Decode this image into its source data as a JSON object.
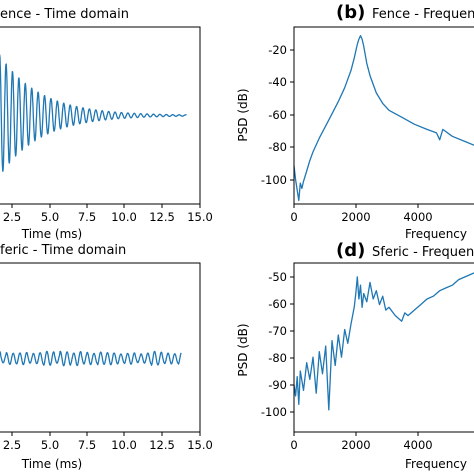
{
  "chart_data": [
    {
      "id": "a",
      "type": "line",
      "title": "ence - Time domain",
      "xlabel": "Time (ms)",
      "ylabel": "",
      "xlim": [
        -0.6,
        15.0
      ],
      "ylim": [
        -1.15,
        1.15
      ],
      "xticks": [
        "2.5",
        "5.0",
        "7.5",
        "10.0",
        "12.5",
        "15.0"
      ],
      "xtick_partial": "2.5",
      "yticks": [],
      "series": [
        {
          "kind": "damped-oscillation",
          "x_start": -0.6,
          "x_end": 14.0,
          "frequency_khz": 2.1,
          "amplitude": 1.0,
          "decay_ms": 3.0,
          "mean": 0.0
        }
      ]
    },
    {
      "id": "b",
      "panel_letter": "(b)",
      "type": "line",
      "title": "Fence - Frequen",
      "xlabel": "Frequency",
      "ylabel": "PSD (dB)",
      "xlim": [
        0,
        6000
      ],
      "ylim": [
        -107,
        -5
      ],
      "xticks": [
        0,
        2000,
        4000
      ],
      "yticks": [
        -20,
        -40,
        -60,
        -80,
        -100
      ],
      "series": [
        {
          "x": [
            0,
            50,
            100,
            150,
            200,
            250,
            300,
            400,
            500,
            600,
            800,
            1000,
            1200,
            1400,
            1600,
            1800,
            1900,
            2000,
            2050,
            2100,
            2150,
            2200,
            2300,
            2400,
            2600,
            2800,
            3000,
            3400,
            3800,
            4200,
            4500,
            4600,
            4700,
            5000,
            5400,
            5800,
            6000
          ],
          "y": [
            -85,
            -93,
            -99,
            -105,
            -95,
            -98,
            -94,
            -88,
            -82,
            -77,
            -69,
            -62,
            -55,
            -48,
            -40,
            -30,
            -23,
            -15,
            -12,
            -10,
            -12,
            -16,
            -26,
            -33,
            -43,
            -49,
            -53,
            -57,
            -61,
            -64,
            -66,
            -70,
            -64,
            -68,
            -71,
            -74,
            -73
          ]
        }
      ]
    },
    {
      "id": "c",
      "type": "line",
      "title": "feric - Time domain",
      "xlabel": "Time (ms)",
      "ylabel": "",
      "xlim": [
        -0.6,
        15.0
      ],
      "ylim": [
        -1.15,
        1.15
      ],
      "xticks": [
        "2.5",
        "5.0",
        "7.5",
        "10.0",
        "12.5",
        "15.0"
      ],
      "xtick_partial": "2.5",
      "yticks": [],
      "series": [
        {
          "kind": "noisy-oscillation",
          "x_start": -0.6,
          "x_end": 13.6,
          "frequency_khz": 2.0,
          "amplitude": 0.07,
          "mean": -0.15
        }
      ]
    },
    {
      "id": "d",
      "panel_letter": "(d)",
      "type": "line",
      "title": "Sferic - Frequen",
      "xlabel": "Frequency",
      "ylabel": "PSD (dB)",
      "xlim": [
        0,
        6000
      ],
      "ylim": [
        -105,
        -44
      ],
      "xticks": [
        0,
        2000,
        4000
      ],
      "yticks": [
        -50,
        -60,
        -70,
        -80,
        -90,
        -100
      ],
      "series": [
        {
          "x": [
            0,
            50,
            100,
            150,
            200,
            300,
            400,
            500,
            600,
            700,
            800,
            900,
            1000,
            1100,
            1200,
            1300,
            1400,
            1500,
            1600,
            1700,
            1800,
            1900,
            1950,
            2000,
            2050,
            2100,
            2150,
            2200,
            2300,
            2400,
            2500,
            2600,
            2700,
            2800,
            2900,
            3000,
            3200,
            3400,
            3500,
            3600,
            3800,
            4000,
            4200,
            4400,
            4600,
            4800,
            5000,
            5200,
            5400,
            5600,
            5800,
            6000
          ],
          "y": [
            -88,
            -92,
            -85,
            -95,
            -83,
            -90,
            -80,
            -86,
            -78,
            -91,
            -76,
            -84,
            -74,
            -97,
            -72,
            -81,
            -70,
            -78,
            -68,
            -73,
            -66,
            -60,
            -55,
            -49,
            -57,
            -52,
            -60,
            -55,
            -58,
            -51,
            -57,
            -54,
            -59,
            -56,
            -61,
            -60,
            -63,
            -65,
            -62,
            -63,
            -61,
            -59,
            -57,
            -56,
            -54,
            -53,
            -52,
            -50,
            -49,
            -48,
            -47,
            -47
          ]
        }
      ]
    }
  ]
}
